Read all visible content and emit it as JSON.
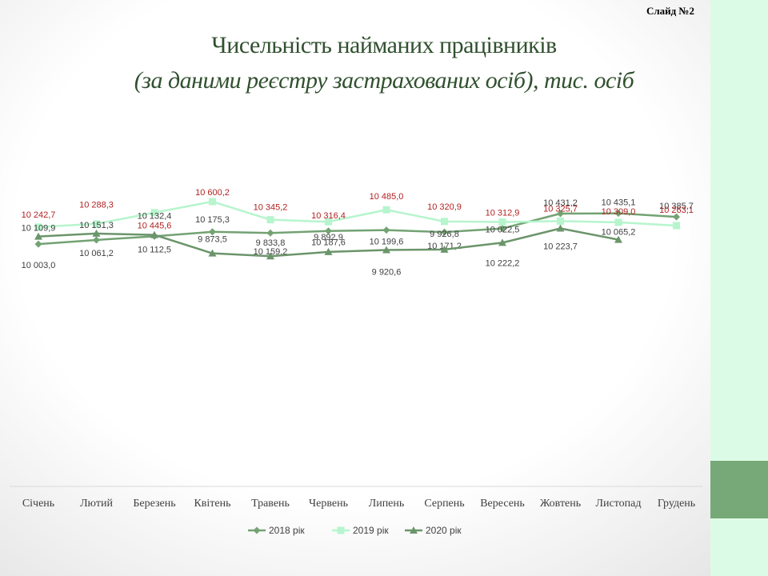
{
  "slide_number": "Слайд №2",
  "title_line1": "Чисельність найманих працівників",
  "title_line2": "(за даними реєстру застрахованих осіб), тис. осіб",
  "colors": {
    "side_strip": "#dcfbe6",
    "side_block": "#77a877",
    "title": "#31502f"
  },
  "chart_data": {
    "type": "line",
    "categories": [
      "Січень",
      "Лютий",
      "Березень",
      "Квітень",
      "Травень",
      "Червень",
      "Липень",
      "Серпень",
      "Вересень",
      "Жовтень",
      "Листопад",
      "Грудень"
    ],
    "series": [
      {
        "name": "2018 рік",
        "color": "#73a273",
        "marker": "diamond",
        "label_color": "#404040",
        "values": [
          10003.0,
          10061.2,
          10112.5,
          10175.3,
          10159.2,
          10187.6,
          10199.6,
          10171.2,
          10222.2,
          10431.2,
          10435.1,
          10385.7
        ],
        "labels": [
          "10 003,0",
          "10 061,2",
          "10 112,5",
          "10 175,3",
          "10 159,2",
          "10 187,6",
          "10 199,6",
          "10 171,2",
          "10 222,2",
          "10 431,2",
          "10 435,1",
          "10 385,7"
        ]
      },
      {
        "name": "2019 рік",
        "color": "#b6f5cd",
        "marker": "square",
        "label_color": "#b22222",
        "values": [
          10242.7,
          10288.3,
          10445.6,
          10600.2,
          10345.2,
          10316.4,
          10485.0,
          10320.9,
          10312.9,
          10325.7,
          10309.0,
          10263.1
        ],
        "labels": [
          "10 242,7",
          "10 288,3",
          "10 445,6",
          "10 600,2",
          "10 345,2",
          "10 316,4",
          "10 485,0",
          "10 320,9",
          "10 312,9",
          "10 325,7",
          "10 309,0",
          "10 263,1"
        ]
      },
      {
        "name": "2020 рік",
        "color": "#6b956b",
        "marker": "triangle",
        "label_color": "#404040",
        "values": [
          10109.9,
          10151.3,
          10132.4,
          9873.5,
          9833.8,
          9892.9,
          9920.6,
          9926.8,
          10022.5,
          10223.7,
          10065.2,
          null
        ],
        "labels": [
          "10 109,9",
          "10 151,3",
          "10 132,4",
          "9 873,5",
          "9 833,8",
          "9 892,9",
          "9 920,6",
          "9 926,8",
          "10 022,5",
          "10 223,7",
          "10 065,2",
          null
        ]
      }
    ],
    "legend_position": "bottom",
    "grid": false
  }
}
